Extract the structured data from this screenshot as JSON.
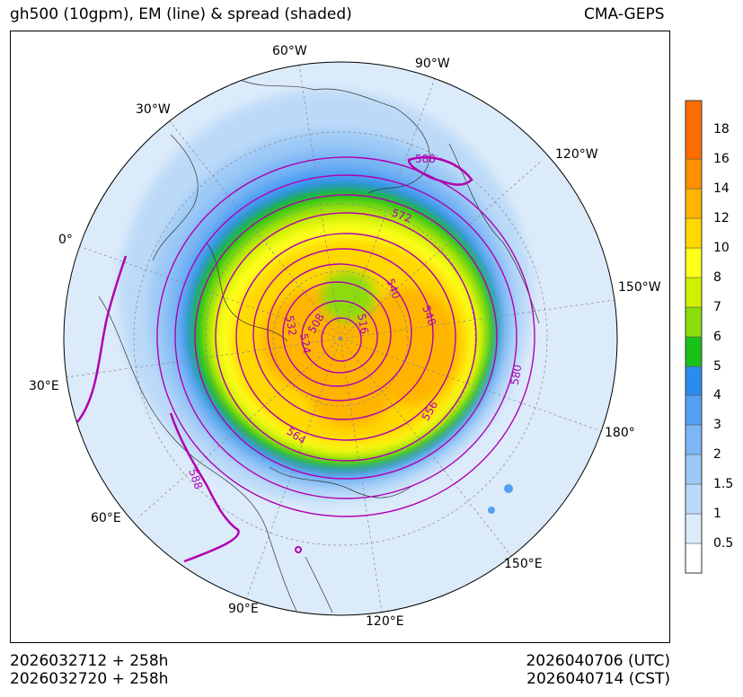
{
  "header": {
    "title": "gh500 (10gpm), EM (line) & spread (shaded)",
    "model": "CMA-GEPS"
  },
  "footer": {
    "init_utc": "2026032712 + 258h",
    "init_cst": "2026032720 + 258h",
    "valid_utc": "2026040706 (UTC)",
    "valid_cst": "2026040714 (CST)"
  },
  "map": {
    "projection": "north-polar-stereographic",
    "longitude_labels": [
      "60°W",
      "90°W",
      "30°W",
      "120°W",
      "0°",
      "150°W",
      "30°E",
      "180°",
      "60°E",
      "150°E",
      "90°E",
      "120°E"
    ],
    "contour_labels": [
      "588",
      "572",
      "540",
      "532",
      "524",
      "508",
      "516",
      "548",
      "580",
      "556",
      "564",
      "588"
    ],
    "contour_color": "#b000b0",
    "coast_color": "#333333"
  },
  "colorbar": {
    "levels": [
      "0.5",
      "1",
      "1.5",
      "2",
      "3",
      "4",
      "5",
      "6",
      "7",
      "8",
      "10",
      "12",
      "14",
      "16",
      "18"
    ],
    "colors": [
      "#ffffff",
      "#dcebfa",
      "#bcdaf8",
      "#9cc9f6",
      "#7cb6f4",
      "#52a0f2",
      "#2b8cf0",
      "#18c218",
      "#8cdc0e",
      "#d0f000",
      "#ffff1a",
      "#ffd800",
      "#ffb400",
      "#ff9000",
      "#ff6c00"
    ]
  }
}
